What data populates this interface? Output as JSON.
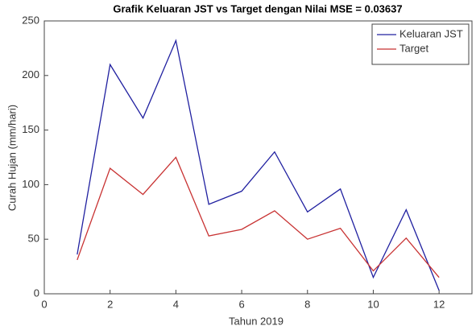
{
  "chart_data": {
    "type": "line",
    "title": "Grafik Keluaran JST vs Target dengan Nilai MSE = 0.03637",
    "x_label": "Tahun 2019",
    "y_label": "Curah Hujan (mm/hari)",
    "x": [
      1,
      2,
      3,
      4,
      5,
      6,
      7,
      8,
      9,
      10,
      11,
      12
    ],
    "series": [
      {
        "name": "Keluaran JST",
        "color": "#2020a0",
        "values": [
          36,
          210,
          161,
          232,
          82,
          94,
          130,
          75,
          96,
          15,
          77,
          3
        ]
      },
      {
        "name": "Target",
        "color": "#c83232",
        "values": [
          31,
          115,
          91,
          125,
          53,
          59,
          76,
          50,
          60,
          21,
          51,
          15
        ]
      }
    ],
    "xlim": [
      0,
      13
    ],
    "xticks": [
      0,
      2,
      4,
      6,
      8,
      10,
      12
    ],
    "ylim": [
      0,
      250
    ],
    "yticks": [
      0,
      50,
      100,
      150,
      200,
      250
    ],
    "grid": false,
    "legend": "top-right"
  }
}
